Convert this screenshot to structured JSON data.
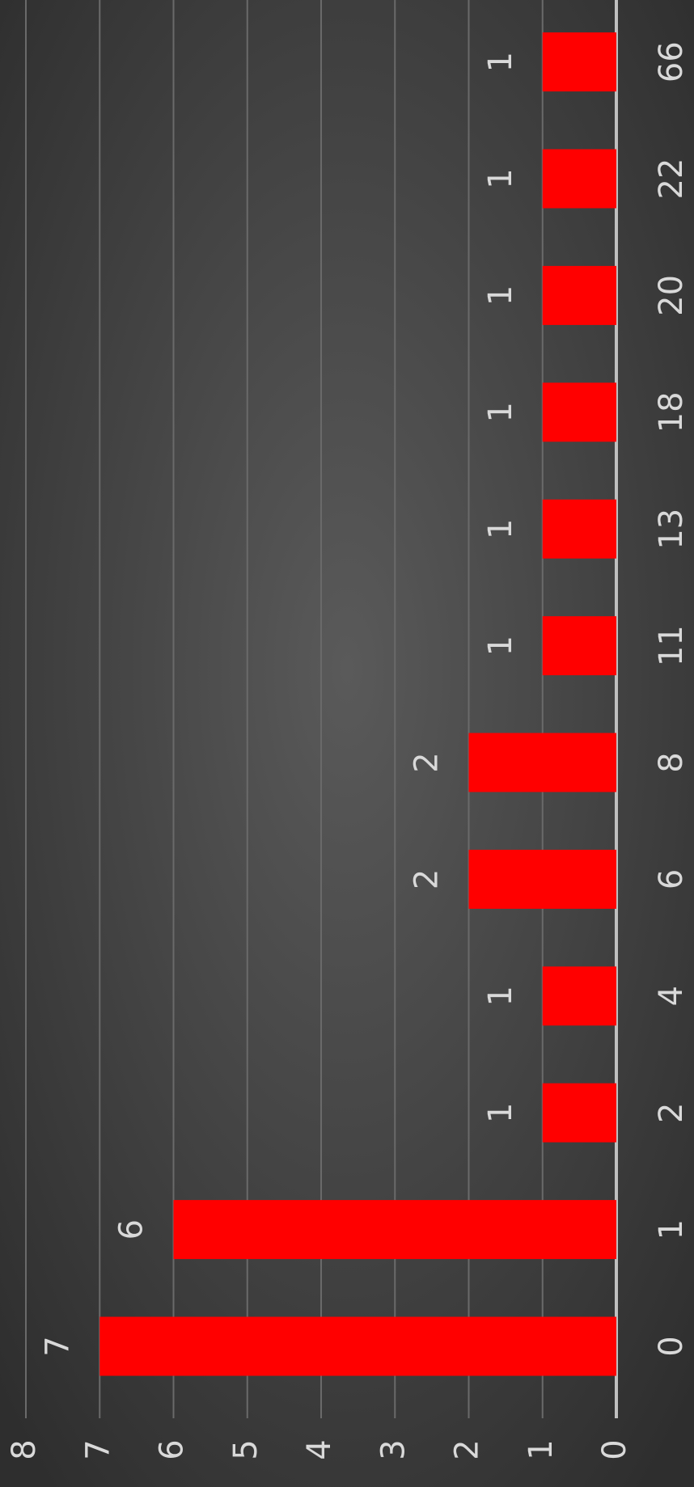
{
  "chart_data": {
    "type": "bar",
    "categories": [
      "0",
      "1",
      "2",
      "4",
      "6",
      "8",
      "11",
      "13",
      "18",
      "20",
      "22",
      "66"
    ],
    "values": [
      7,
      6,
      1,
      1,
      2,
      2,
      1,
      1,
      1,
      1,
      1,
      1
    ],
    "color": "#ff0000",
    "ylim": [
      0,
      8
    ],
    "yticks": [
      0,
      1,
      2,
      3,
      4,
      5,
      6,
      7,
      8
    ],
    "grid": true
  }
}
